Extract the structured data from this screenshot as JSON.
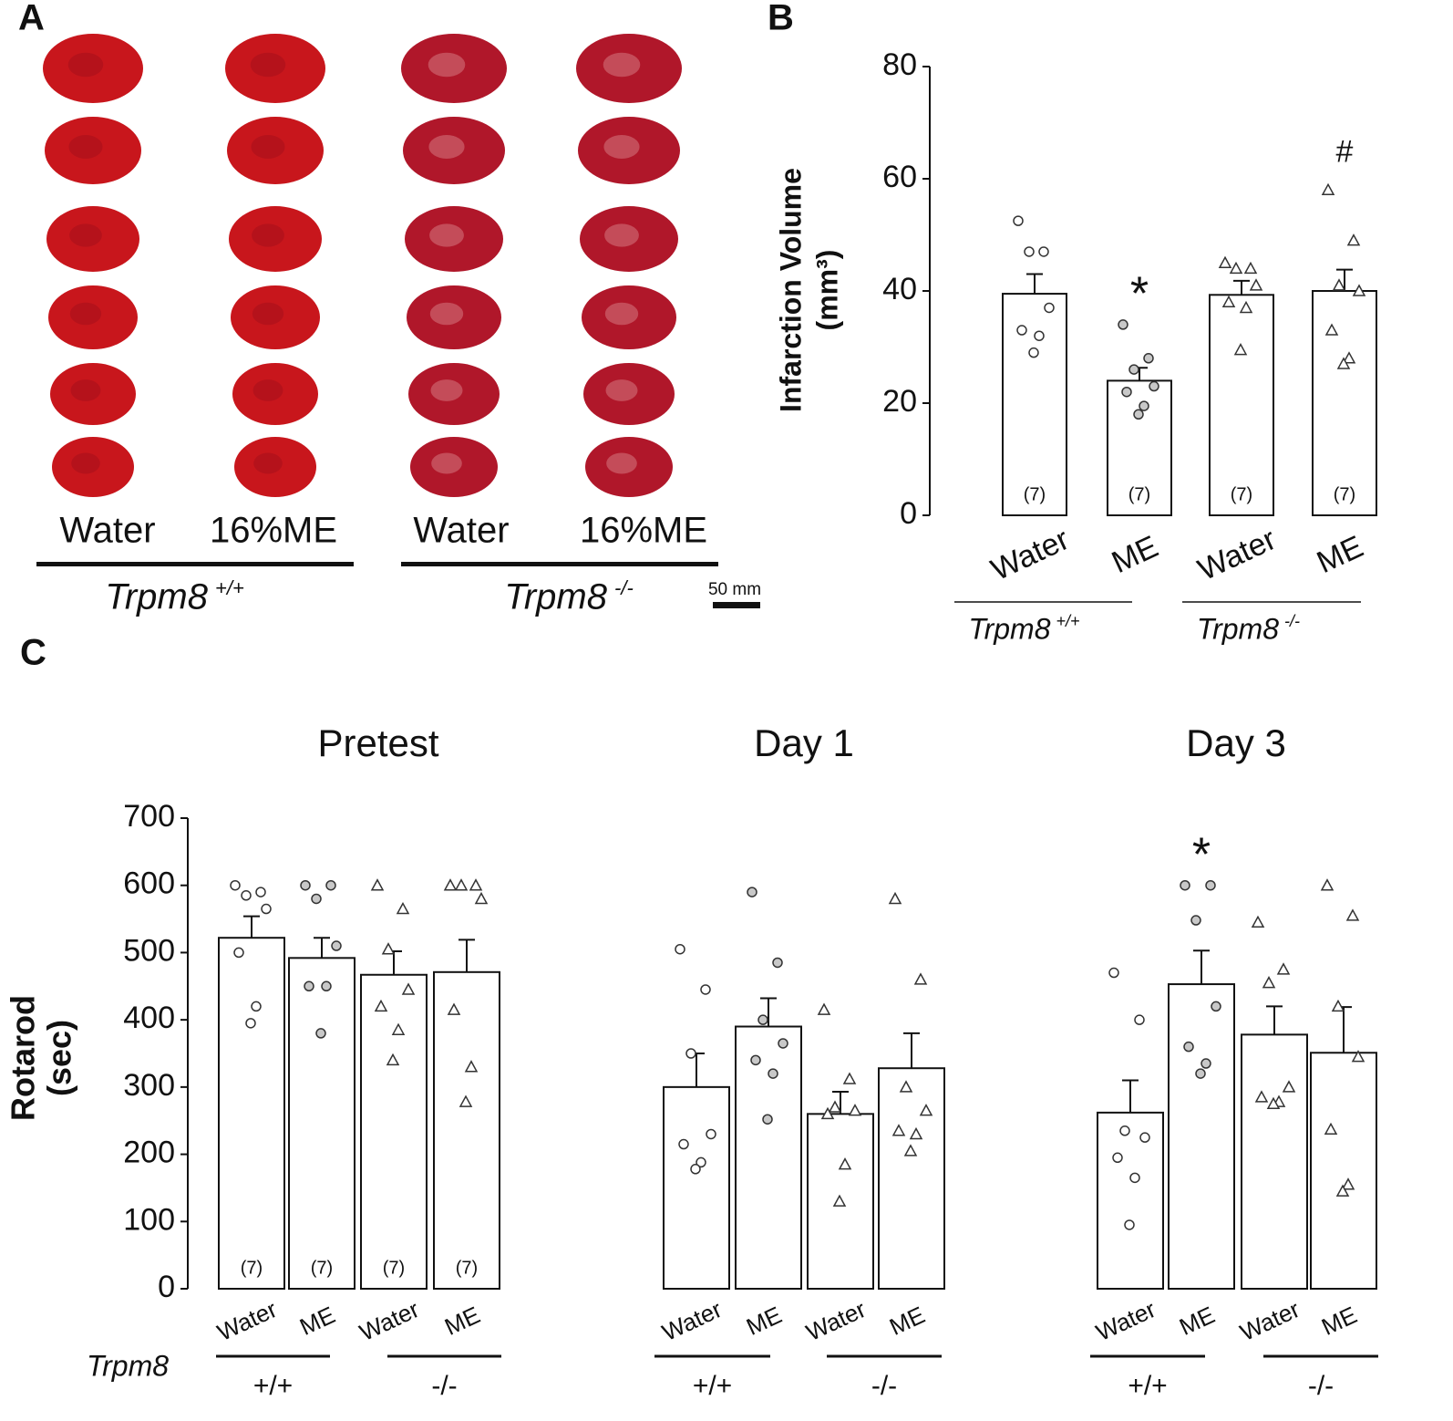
{
  "panel_labels": [
    "A",
    "B",
    "C"
  ],
  "panel_a": {
    "columns": [
      "Water",
      "16%ME",
      "Water",
      "16%ME"
    ],
    "genotype_name": "Trpm8",
    "genotypes": [
      "+/+",
      "-/-"
    ],
    "scale_bar": "50 mm"
  },
  "chart_data": [
    {
      "type": "bar",
      "ylabel": "Infarction Volume",
      "ylabel_unit": "(mm³)",
      "categories": [
        "Water",
        "ME",
        "Water",
        "ME"
      ],
      "group_label": "Trpm8",
      "groups": [
        "+/+",
        "-/-"
      ],
      "values": [
        39.5,
        24,
        39.3,
        40
      ],
      "errors": [
        3.5,
        2.3,
        2.5,
        3.8
      ],
      "n_labels": [
        "(7)",
        "(7)",
        "(7)",
        "(7)"
      ],
      "annotations": [
        null,
        "*",
        null,
        "#"
      ],
      "points": [
        [
          52.5,
          47,
          47,
          37,
          33,
          32,
          29
        ],
        [
          34,
          28,
          26,
          23,
          22,
          19.5,
          18
        ],
        [
          45,
          44,
          44,
          41,
          38,
          37,
          29.5
        ],
        [
          58,
          49,
          41,
          40,
          33,
          28,
          27
        ]
      ],
      "markers": [
        "circle",
        "circle",
        "triangle",
        "triangle"
      ],
      "marker_fills": [
        "#ffffff",
        "#c8c8c8",
        "#ffffff",
        "#ffffff"
      ],
      "ylim": [
        0,
        80
      ],
      "yticks": [
        0,
        20,
        40,
        60,
        80
      ]
    },
    {
      "type": "bar",
      "title": "Pretest",
      "ylabel": "Rotarod",
      "ylabel_unit": "(sec)",
      "group_label": "Trpm8",
      "categories": [
        "Water",
        "ME",
        "Water",
        "ME"
      ],
      "groups": [
        "+/+",
        "-/-"
      ],
      "values": [
        522,
        492,
        467,
        471
      ],
      "errors": [
        32,
        30,
        35,
        48
      ],
      "n_labels": [
        "(7)",
        "(7)",
        "(7)",
        "(7)"
      ],
      "points": [
        [
          600,
          590,
          585,
          565,
          500,
          420,
          395
        ],
        [
          600,
          600,
          580,
          510,
          450,
          450,
          380
        ],
        [
          600,
          565,
          505,
          445,
          420,
          385,
          340
        ],
        [
          600,
          600,
          600,
          580,
          415,
          330,
          278
        ]
      ],
      "markers": [
        "circle",
        "circle",
        "triangle",
        "triangle"
      ],
      "marker_fills": [
        "#ffffff",
        "#c8c8c8",
        "#ffffff",
        "#ffffff"
      ],
      "ylim": [
        0,
        700
      ],
      "yticks": [
        0,
        100,
        200,
        300,
        400,
        500,
        600,
        700
      ]
    },
    {
      "type": "bar",
      "title": "Day 1",
      "categories": [
        "Water",
        "ME",
        "Water",
        "ME"
      ],
      "groups": [
        "+/+",
        "-/-"
      ],
      "values": [
        300,
        390,
        260,
        328
      ],
      "errors": [
        50,
        42,
        33,
        52
      ],
      "points": [
        [
          505,
          445,
          350,
          230,
          215,
          188,
          178
        ],
        [
          590,
          485,
          400,
          365,
          340,
          320,
          252
        ],
        [
          415,
          312,
          270,
          265,
          260,
          185,
          130
        ],
        [
          580,
          460,
          300,
          265,
          235,
          230,
          205
        ]
      ],
      "markers": [
        "circle",
        "circle",
        "triangle",
        "triangle"
      ],
      "marker_fills": [
        "#ffffff",
        "#c8c8c8",
        "#ffffff",
        "#ffffff"
      ],
      "ylim": [
        0,
        700
      ]
    },
    {
      "type": "bar",
      "title": "Day 3",
      "categories": [
        "Water",
        "ME",
        "Water",
        "ME"
      ],
      "groups": [
        "+/+",
        "-/-"
      ],
      "values": [
        262,
        453,
        378,
        351
      ],
      "errors": [
        48,
        50,
        42,
        68
      ],
      "annotations": [
        null,
        "*",
        null,
        null
      ],
      "points": [
        [
          470,
          400,
          235,
          225,
          195,
          165,
          95
        ],
        [
          600,
          600,
          548,
          420,
          360,
          335,
          320
        ],
        [
          545,
          475,
          455,
          300,
          285,
          278,
          275
        ],
        [
          600,
          555,
          420,
          345,
          237,
          155,
          145
        ]
      ],
      "markers": [
        "circle",
        "circle",
        "triangle",
        "triangle"
      ],
      "marker_fills": [
        "#ffffff",
        "#c8c8c8",
        "#ffffff",
        "#ffffff"
      ],
      "ylim": [
        0,
        700
      ]
    }
  ]
}
